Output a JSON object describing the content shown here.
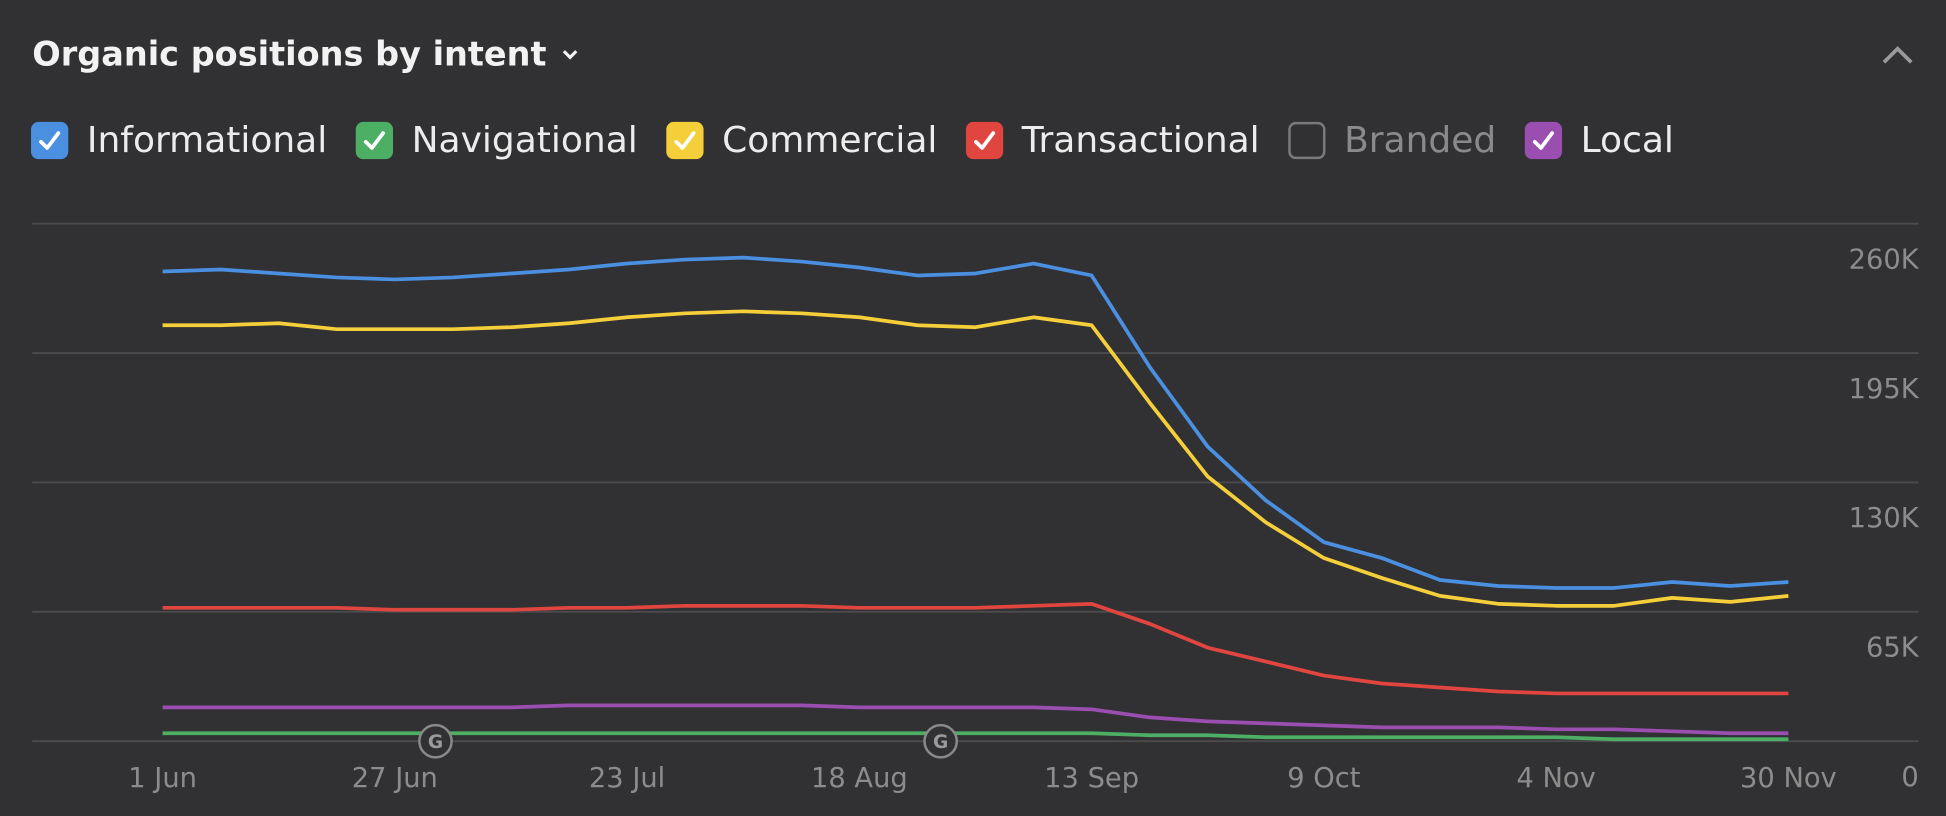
{
  "chart_data": {
    "type": "line",
    "title": "Organic positions by intent",
    "categories": [
      "1 Jun",
      null,
      null,
      null,
      "27 Jun",
      null,
      null,
      null,
      "23 Jul",
      null,
      null,
      null,
      "18 Aug",
      null,
      null,
      null,
      "13 Sep",
      null,
      null,
      null,
      "9 Oct",
      null,
      null,
      null,
      "4 Nov",
      null,
      null,
      null,
      "30 Nov"
    ],
    "series": [
      {
        "name": "Informational",
        "color": "#4a8fe0",
        "checked": true,
        "values": [
          236000,
          237000,
          235000,
          233000,
          232000,
          233000,
          235000,
          237000,
          240000,
          242000,
          243000,
          241000,
          238000,
          234000,
          235000,
          240000,
          234000,
          188000,
          148000,
          121000,
          100000,
          92000,
          81000,
          78000,
          77000,
          77000,
          80000,
          78000,
          80000
        ]
      },
      {
        "name": "Navigational",
        "color": "#4caf64",
        "checked": true,
        "values": [
          4000,
          4000,
          4000,
          4000,
          4000,
          4000,
          4000,
          4000,
          4000,
          4000,
          4000,
          4000,
          4000,
          4000,
          4000,
          4000,
          4000,
          3000,
          3000,
          2000,
          2000,
          2000,
          2000,
          2000,
          2000,
          1000,
          1000,
          1000,
          1000
        ]
      },
      {
        "name": "Commercial",
        "color": "#f5cf3a",
        "checked": true,
        "values": [
          209000,
          209000,
          210000,
          207000,
          207000,
          207000,
          208000,
          210000,
          213000,
          215000,
          216000,
          215000,
          213000,
          209000,
          208000,
          213000,
          209000,
          170000,
          133000,
          110000,
          92000,
          82000,
          73000,
          69000,
          68000,
          68000,
          72000,
          70000,
          73000
        ]
      },
      {
        "name": "Transactional",
        "color": "#e0463f",
        "checked": true,
        "values": [
          67000,
          67000,
          67000,
          67000,
          66000,
          66000,
          66000,
          67000,
          67000,
          68000,
          68000,
          68000,
          67000,
          67000,
          67000,
          68000,
          69000,
          59000,
          47000,
          40000,
          33000,
          29000,
          27000,
          25000,
          24000,
          24000,
          24000,
          24000,
          24000
        ]
      },
      {
        "name": "Local",
        "color": "#9a4fb0",
        "checked": true,
        "values": [
          17000,
          17000,
          17000,
          17000,
          17000,
          17000,
          17000,
          18000,
          18000,
          18000,
          18000,
          18000,
          17000,
          17000,
          17000,
          17000,
          16000,
          12000,
          10000,
          9000,
          8000,
          7000,
          7000,
          7000,
          6000,
          6000,
          5000,
          4000,
          4000
        ]
      }
    ],
    "hidden_series": [
      {
        "name": "Branded",
        "checked": false
      }
    ],
    "legend_order": [
      "series.0",
      "series.1",
      "series.2",
      "series.3",
      "hidden_series.0",
      "series.4"
    ],
    "ylim": [
      0,
      260000
    ],
    "yticks": [
      0,
      {
        "value": 65000,
        "label": "65K"
      },
      {
        "value": 130000,
        "label": "130K"
      },
      {
        "value": 195000,
        "label": "195K"
      },
      {
        "value": 260000,
        "label": "260K"
      }
    ],
    "grid": true,
    "annotations": [
      {
        "index": 4.7,
        "label": "G"
      },
      {
        "index": 13.4,
        "label": "G"
      }
    ]
  }
}
